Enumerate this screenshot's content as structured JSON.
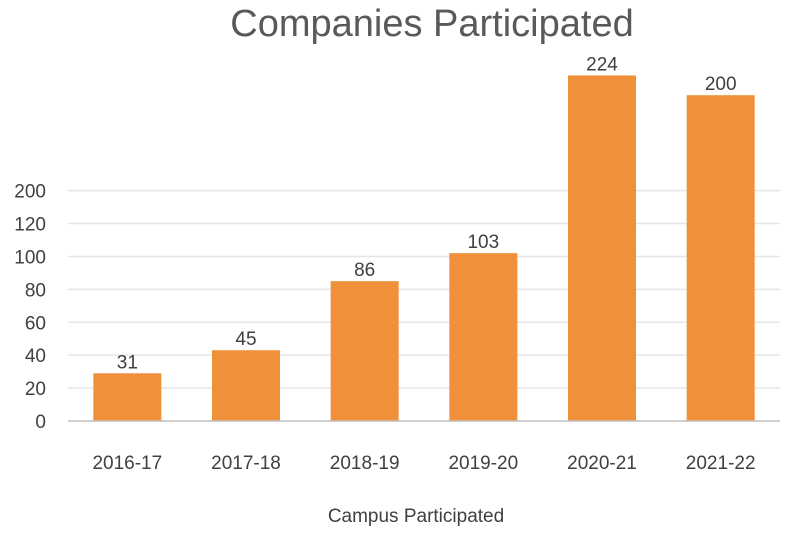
{
  "chart_data": {
    "type": "bar",
    "title": "Companies Participated",
    "xlabel": "Campus Participated",
    "ylabel": "",
    "categories": [
      "2016-17",
      "2017-18",
      "2018-19",
      "2019-20",
      "2020-21",
      "2021-22"
    ],
    "values": [
      31,
      45,
      86,
      103,
      224,
      200
    ],
    "data_labels": [
      "31",
      "45",
      "86",
      "103",
      "224",
      "200"
    ],
    "bar_heights_on_axis": [
      29,
      43,
      85,
      102,
      210,
      198
    ],
    "y_ticks": [
      0,
      20,
      40,
      60,
      80,
      100,
      120,
      200
    ],
    "ylim": [
      0,
      220
    ],
    "grid": true,
    "legend": "none",
    "colors": {
      "bar": "#f0903a",
      "grid": "#e6e6e6",
      "axis": "#bfbfbf",
      "text": "#404040",
      "title": "#595959"
    }
  }
}
